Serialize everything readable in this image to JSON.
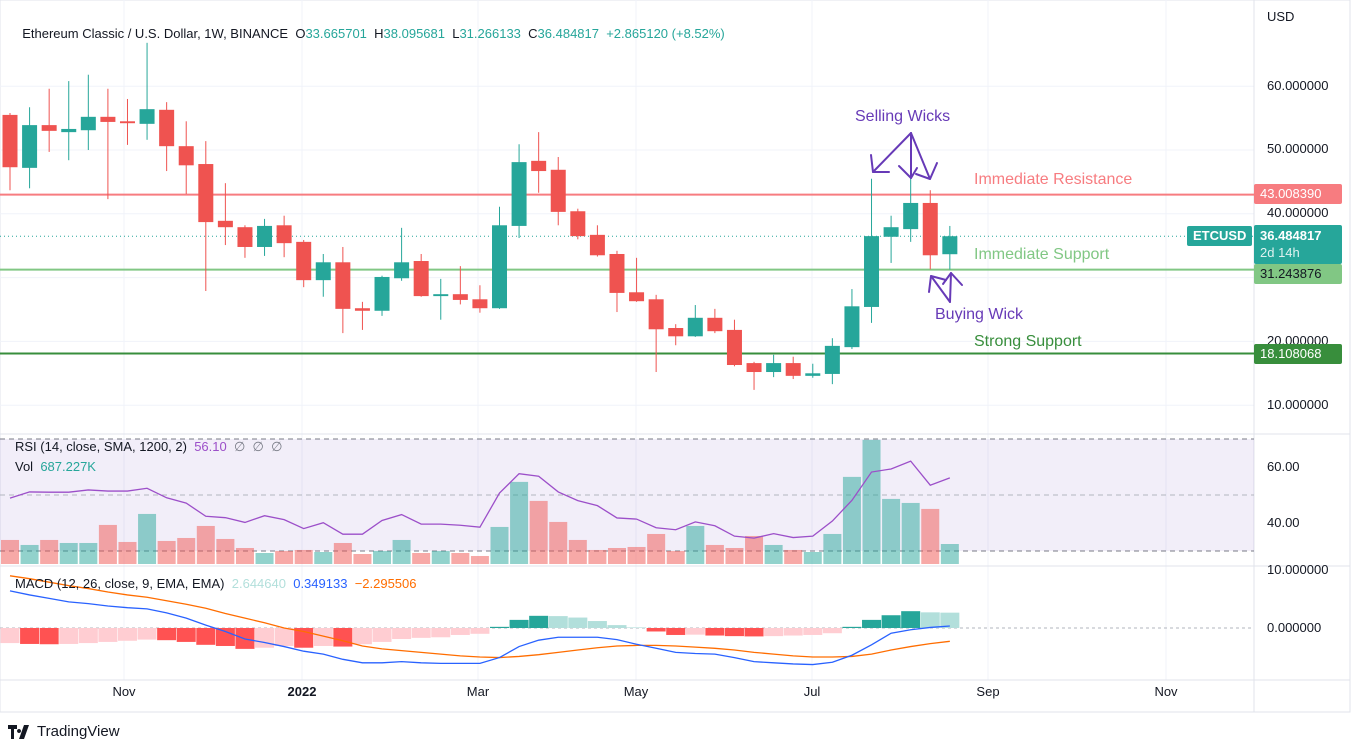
{
  "header": {
    "symbol": "Ethereum Classic / U.S. Dollar, 1W, BINANCE",
    "o_label": "O",
    "o_value": "33.665701",
    "h_label": "H",
    "h_value": "38.095681",
    "l_label": "L",
    "l_value": "31.266133",
    "c_label": "C",
    "c_value": "36.484817",
    "change": "+2.865120 (+8.52%)"
  },
  "price_axis": {
    "currency": "USD",
    "ticks": [
      "60.000000",
      "50.000000",
      "40.000000",
      "20.000000",
      "10.000000"
    ],
    "tags": {
      "resistance": "43.008390",
      "symbol": "ETCUSD",
      "last_price": "36.484817",
      "countdown": "2d 14h",
      "support": "31.243876",
      "strong_support": "18.108068"
    }
  },
  "rsi_pane": {
    "label": "RSI (14, close, SMA, 1200, 2)",
    "value": "56.10",
    "empty_values": "∅  ∅  ∅",
    "ticks": [
      "60.00",
      "40.00"
    ],
    "vol_label": "Vol",
    "vol_value": "687.227K"
  },
  "macd_pane": {
    "label": "MACD (12, 26, close, 9, EMA, EMA)",
    "hist_value": "2.644640",
    "macd_value": "0.349133",
    "signal_value": "−2.295506",
    "ticks": [
      "10.000000",
      "0.000000"
    ]
  },
  "time_axis": [
    "Nov",
    "2022",
    "Mar",
    "May",
    "Jul",
    "Sep",
    "Nov"
  ],
  "annotations": {
    "selling_wicks": "Selling Wicks",
    "immediate_resistance": "Immediate Resistance",
    "immediate_support": "Immediate Support",
    "buying_wick": "Buying Wick",
    "strong_support": "Strong Support"
  },
  "branding": {
    "logo_text": "TradingView"
  },
  "colors": {
    "up": "#26a69a",
    "down": "#ef5350",
    "resistance": "#f77c80",
    "support": "#81c784",
    "strong_support": "#388e3c",
    "annotation": "#673ab7",
    "rsi_line": "#9c4fc9",
    "macd_line": "#2962ff",
    "signal_line": "#ff6d00"
  },
  "chart_data": {
    "type": "candlestick",
    "title": "Ethereum Classic / U.S. Dollar, 1W, BINANCE",
    "interval": "1W",
    "ylim": [
      5,
      72
    ],
    "y_scale": "linear",
    "grid": true,
    "x_tick_labels": [
      "Nov",
      "2022",
      "Mar",
      "May",
      "Jul",
      "Sep",
      "Nov"
    ],
    "horizontal_levels": [
      {
        "name": "Immediate Resistance",
        "value": 43.00839
      },
      {
        "name": "Immediate Support",
        "value": 31.243876
      },
      {
        "name": "Strong Support",
        "value": 18.108068
      }
    ],
    "ohlc_columns": [
      "open",
      "high",
      "low",
      "close"
    ],
    "ohlc": [
      [
        55.5,
        55.8,
        43.7,
        47.3
      ],
      [
        47.2,
        56.7,
        44.0,
        53.9
      ],
      [
        53.9,
        59.6,
        49.7,
        53.0
      ],
      [
        52.8,
        60.8,
        48.4,
        53.3
      ],
      [
        53.1,
        61.8,
        50.0,
        55.2
      ],
      [
        55.2,
        59.6,
        42.3,
        54.4
      ],
      [
        54.5,
        58.0,
        50.8,
        54.2
      ],
      [
        54.1,
        66.8,
        51.6,
        56.4
      ],
      [
        56.3,
        57.5,
        46.7,
        50.6
      ],
      [
        50.6,
        54.5,
        43.1,
        47.6
      ],
      [
        47.8,
        51.4,
        27.9,
        38.7
      ],
      [
        38.9,
        44.8,
        35.1,
        37.9
      ],
      [
        37.9,
        38.2,
        33.1,
        34.8
      ],
      [
        34.8,
        39.2,
        33.4,
        38.1
      ],
      [
        38.2,
        39.7,
        33.2,
        35.4
      ],
      [
        35.6,
        35.9,
        28.5,
        29.6
      ],
      [
        29.6,
        33.7,
        27.0,
        32.4
      ],
      [
        32.4,
        34.8,
        21.3,
        25.1
      ],
      [
        25.2,
        26.2,
        21.8,
        24.8
      ],
      [
        24.8,
        30.3,
        24.0,
        30.1
      ],
      [
        29.9,
        37.8,
        29.5,
        32.4
      ],
      [
        32.6,
        33.7,
        27.0,
        27.1
      ],
      [
        27.1,
        29.8,
        23.4,
        27.4
      ],
      [
        27.4,
        31.8,
        25.8,
        26.5
      ],
      [
        26.6,
        28.8,
        24.5,
        25.2
      ],
      [
        25.2,
        41.1,
        25.1,
        38.2
      ],
      [
        38.1,
        50.9,
        36.2,
        48.1
      ],
      [
        48.3,
        52.8,
        43.3,
        46.7
      ],
      [
        46.9,
        48.9,
        38.2,
        40.3
      ],
      [
        40.4,
        40.8,
        36.0,
        36.5
      ],
      [
        36.7,
        38.2,
        33.3,
        33.5
      ],
      [
        33.7,
        34.2,
        24.6,
        27.6
      ],
      [
        27.7,
        33.1,
        26.2,
        26.3
      ],
      [
        26.6,
        27.3,
        15.2,
        21.9
      ],
      [
        22.1,
        22.7,
        19.4,
        20.8
      ],
      [
        20.8,
        25.7,
        20.7,
        23.7
      ],
      [
        23.7,
        25.1,
        21.3,
        21.6
      ],
      [
        21.8,
        23.4,
        16.1,
        16.3
      ],
      [
        16.6,
        16.8,
        12.4,
        15.2
      ],
      [
        15.2,
        17.9,
        14.4,
        16.6
      ],
      [
        16.6,
        17.6,
        14.1,
        14.6
      ],
      [
        14.6,
        16.5,
        14.3,
        15.0
      ],
      [
        14.9,
        20.5,
        13.3,
        19.3
      ],
      [
        19.1,
        28.2,
        18.8,
        25.5
      ],
      [
        25.4,
        45.5,
        22.9,
        36.5
      ],
      [
        36.4,
        39.7,
        32.3,
        37.9
      ],
      [
        37.6,
        45.8,
        35.6,
        41.7
      ],
      [
        41.7,
        43.7,
        31.3,
        33.5
      ],
      [
        33.665701,
        38.095681,
        31.266133,
        36.484817
      ]
    ],
    "volume_k": [
      826,
      654,
      826,
      722,
      722,
      1342,
      757,
      1720,
      791,
      894,
      1307,
      860,
      550,
      378,
      447,
      482,
      413,
      722,
      344,
      447,
      826,
      378,
      447,
      378,
      275,
      1273,
      2821,
      2167,
      1445,
      826,
      482,
      550,
      585,
      1032,
      447,
      1307,
      654,
      550,
      963,
      654,
      482,
      413,
      1032,
      2993,
      4266,
      2236,
      2098,
      1892,
      687.227
    ],
    "rsi": {
      "ylim": [
        25,
        75
      ],
      "levels": [
        70,
        50,
        30
      ],
      "values": [
        48.9,
        51.1,
        51.0,
        51.0,
        51.8,
        51.4,
        51.4,
        52.4,
        49.0,
        47.1,
        42.4,
        41.9,
        40.2,
        42.6,
        41.2,
        38.0,
        40.1,
        36.0,
        36.0,
        40.9,
        43.0,
        39.6,
        39.6,
        39.2,
        38.5,
        50.7,
        57.6,
        56.7,
        51.1,
        48.0,
        46.2,
        41.8,
        41.4,
        38.3,
        37.6,
        40.4,
        39.0,
        35.3,
        34.6,
        36.2,
        34.8,
        35.3,
        40.7,
        48.1,
        58.2,
        59.3,
        62.1,
        53.5,
        56.1
      ]
    },
    "macd": {
      "histogram": [
        -2.6,
        -2.75,
        -2.8,
        -2.75,
        -2.6,
        -2.4,
        -2.2,
        -2.0,
        -2.1,
        -2.4,
        -2.9,
        -3.1,
        -3.6,
        -3.4,
        -3.1,
        -3.4,
        -3.1,
        -3.2,
        -2.8,
        -2.4,
        -1.9,
        -1.7,
        -1.6,
        -1.2,
        -1.0,
        0.2,
        1.4,
        2.1,
        2.05,
        1.8,
        1.2,
        0.5,
        0.1,
        -0.6,
        -1.2,
        -1.15,
        -1.3,
        -1.4,
        -1.45,
        -1.4,
        -1.3,
        -1.2,
        -0.9,
        0.2,
        1.4,
        2.2,
        2.9,
        2.7,
        2.64464
      ],
      "macd": [
        6.4,
        5.7,
        5.1,
        4.5,
        4.2,
        3.8,
        3.5,
        3.3,
        2.6,
        1.7,
        0.5,
        -0.6,
        -1.9,
        -2.5,
        -3.2,
        -4.0,
        -4.5,
        -5.4,
        -6.0,
        -6.0,
        -5.8,
        -6.0,
        -6.1,
        -6.1,
        -6.1,
        -5.1,
        -3.2,
        -2.1,
        -1.6,
        -1.6,
        -1.6,
        -2.0,
        -2.8,
        -3.5,
        -4.2,
        -4.4,
        -4.5,
        -5.1,
        -5.8,
        -6.0,
        -6.2,
        -6.3,
        -5.9,
        -4.7,
        -2.9,
        -0.9,
        -0.3,
        0.1,
        0.349133
      ],
      "signal": [
        9.0,
        8.5,
        7.9,
        7.3,
        6.8,
        6.2,
        5.7,
        5.3,
        4.7,
        4.1,
        3.4,
        2.5,
        1.7,
        0.9,
        0.0,
        -0.6,
        -1.4,
        -2.2,
        -3.1,
        -3.6,
        -3.9,
        -4.2,
        -4.5,
        -4.8,
        -5.0,
        -5.1,
        -4.9,
        -4.6,
        -4.2,
        -3.8,
        -3.4,
        -3.1,
        -3.0,
        -3.0,
        -3.1,
        -3.3,
        -3.5,
        -3.8,
        -4.2,
        -4.5,
        -4.8,
        -5.0,
        -5.0,
        -4.9,
        -4.5,
        -3.8,
        -3.2,
        -2.7,
        -2.295506
      ]
    }
  }
}
